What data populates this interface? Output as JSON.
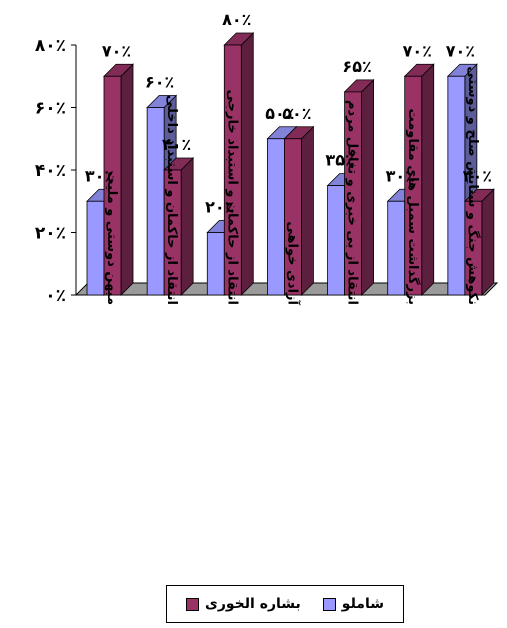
{
  "colors": {
    "shamlou": "#9999ff",
    "bashareh": "#993366",
    "floor": "#9a9a9a"
  },
  "chart_data": {
    "type": "bar",
    "categories": [
      "میهن دوستی و ملیت",
      "انتقاد از حاکمان و استبداد داخلی",
      "انتقاد از حاکمان و استبداد خارجی",
      "آزادی خواهی",
      "انتقاد از بی خبری و تغافل مردم",
      "بزرگداشت سمبل های مقاومت",
      "نکوهش جنگ و ستایش صلح و دوستی"
    ],
    "series": [
      {
        "name": "شاملو",
        "values": [
          30,
          60,
          20,
          50,
          35,
          30,
          70
        ],
        "labels": [
          "۳۰٪",
          "۶۰٪",
          "۲۰٪",
          "۵۰٪",
          "۳۵٪",
          "۳۰٪",
          "۷۰٪"
        ]
      },
      {
        "name": "بشاره الخوری",
        "values": [
          70,
          40,
          80,
          50,
          65,
          70,
          30
        ],
        "labels": [
          "۷۰٪",
          "۴۰٪",
          "۸۰٪",
          "۵۰٪",
          "۶۵٪",
          "۷۰٪",
          "۳۰٪"
        ]
      }
    ],
    "yticks": [
      0,
      20,
      40,
      60,
      80
    ],
    "ytick_labels": [
      "۰٪",
      "۲۰٪",
      "۴۰٪",
      "۶۰٪",
      "۸۰٪"
    ],
    "ylim": [
      0,
      80
    ],
    "grid": false,
    "legend_position": "bottom"
  },
  "legend": {
    "shamlou": "شاملو",
    "bashareh": "بشاره الخوری"
  }
}
